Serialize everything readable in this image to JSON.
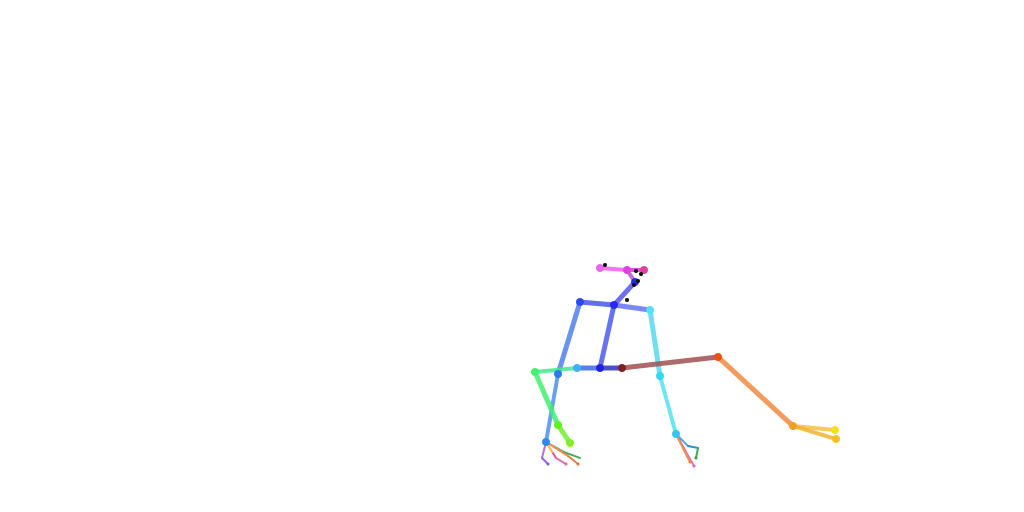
{
  "scene": {
    "background": "#ffffff",
    "subject": "pose-skeleton",
    "colors": {
      "blue": "#2a2aee",
      "light_blue": "#4f7ff0",
      "cyan": "#55e0f0",
      "green": "#40f070",
      "yellow_green": "#80f020",
      "brown": "#a05050",
      "orange": "#f08a40",
      "yellow": "#f5c040",
      "magenta": "#e040e0",
      "pink": "#ee66ee",
      "black": "#111111"
    }
  }
}
